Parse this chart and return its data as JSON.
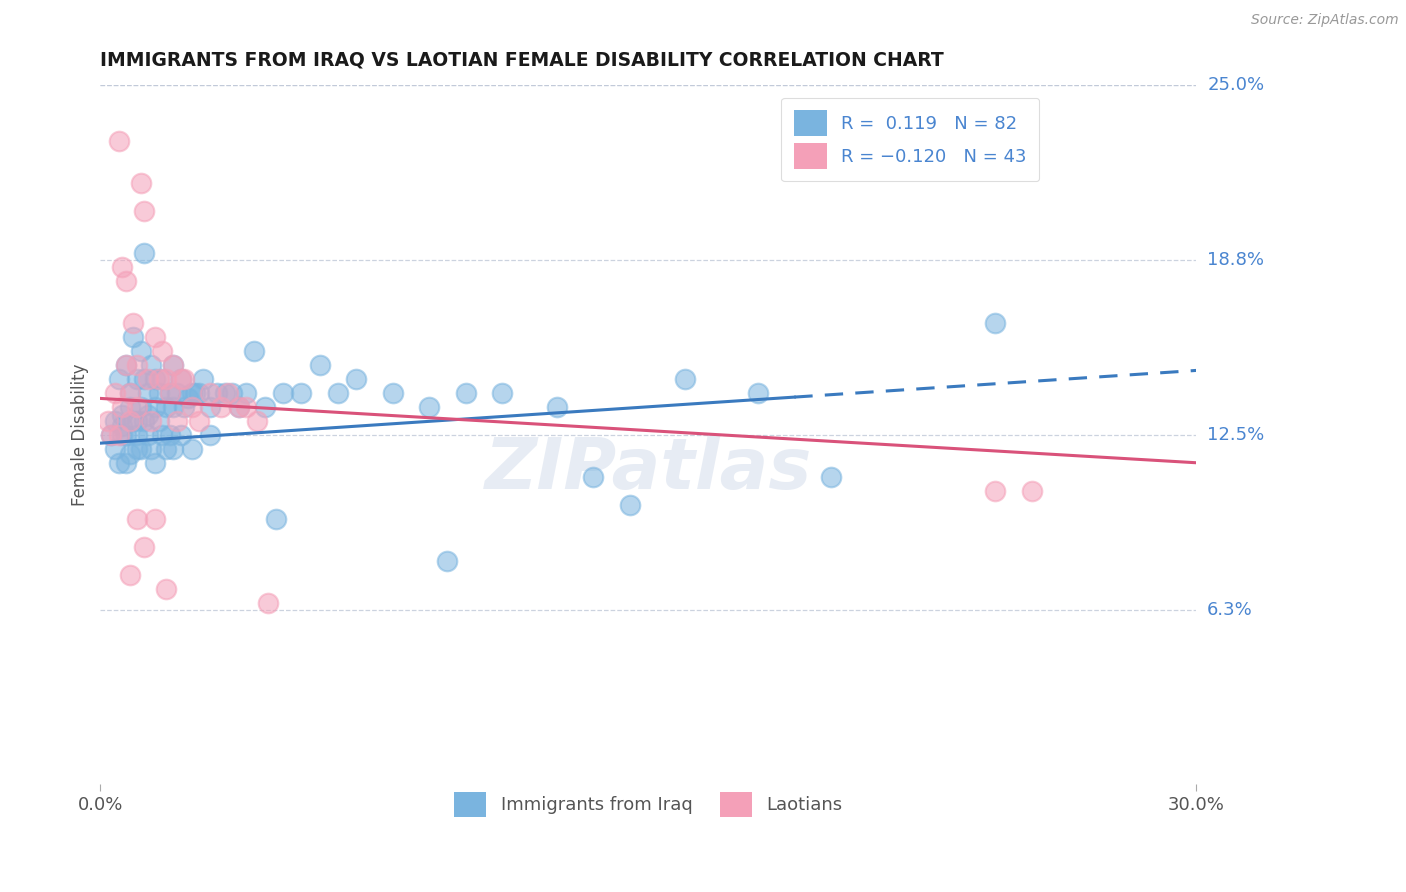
{
  "title": "IMMIGRANTS FROM IRAQ VS LAOTIAN FEMALE DISABILITY CORRELATION CHART",
  "source": "Source: ZipAtlas.com",
  "ylabel": "Female Disability",
  "xlim": [
    0.0,
    30.0
  ],
  "ylim": [
    0.0,
    25.0
  ],
  "xtick_labels": [
    "0.0%",
    "30.0%"
  ],
  "ytick_positions": [
    6.25,
    12.5,
    18.75,
    25.0
  ],
  "ytick_labels": [
    "6.3%",
    "12.5%",
    "18.8%",
    "25.0%"
  ],
  "legend_label1": "Immigrants from Iraq",
  "legend_label2": "Laotians",
  "blue_color": "#7ab4df",
  "pink_color": "#f4a0b8",
  "trend_blue": "#3a7abf",
  "trend_pink": "#d9527a",
  "background_color": "#ffffff",
  "grid_color": "#c0c8d8",
  "title_color": "#1a1a1a",
  "right_label_color": "#4a85d0",
  "blue_scatter_x": [
    0.3,
    0.4,
    0.5,
    0.5,
    0.6,
    0.6,
    0.7,
    0.7,
    0.8,
    0.8,
    0.9,
    0.9,
    1.0,
    1.0,
    1.0,
    1.1,
    1.1,
    1.2,
    1.2,
    1.3,
    1.3,
    1.4,
    1.5,
    1.5,
    1.6,
    1.7,
    1.8,
    1.9,
    2.0,
    2.0,
    2.1,
    2.2,
    2.3,
    2.4,
    2.5,
    2.6,
    2.7,
    2.8,
    3.0,
    3.2,
    3.4,
    3.6,
    3.8,
    4.0,
    4.2,
    4.5,
    5.0,
    5.5,
    6.0,
    6.5,
    7.0,
    8.0,
    9.0,
    10.0,
    11.0,
    12.5,
    13.5,
    14.5,
    16.0,
    18.0,
    4.8,
    9.5,
    20.0,
    24.5,
    0.4,
    0.6,
    0.7,
    0.8,
    1.0,
    1.1,
    1.2,
    1.3,
    1.4,
    1.5,
    1.6,
    1.7,
    1.8,
    1.9,
    2.0,
    2.2,
    2.5,
    3.0
  ],
  "blue_scatter_y": [
    12.5,
    13.0,
    14.5,
    11.5,
    13.2,
    12.8,
    15.0,
    12.5,
    14.0,
    13.5,
    16.0,
    13.0,
    14.5,
    13.0,
    12.0,
    15.5,
    13.5,
    19.0,
    14.5,
    14.0,
    13.2,
    15.0,
    14.5,
    13.5,
    14.0,
    14.5,
    13.5,
    14.0,
    15.0,
    13.5,
    14.0,
    14.5,
    13.5,
    13.8,
    14.0,
    14.0,
    14.0,
    14.5,
    13.5,
    14.0,
    14.0,
    14.0,
    13.5,
    14.0,
    15.5,
    13.5,
    14.0,
    14.0,
    15.0,
    14.0,
    14.5,
    14.0,
    13.5,
    14.0,
    14.0,
    13.5,
    11.0,
    10.0,
    14.5,
    14.0,
    9.5,
    8.0,
    11.0,
    16.5,
    12.0,
    12.5,
    11.5,
    11.8,
    12.5,
    12.0,
    13.0,
    12.5,
    12.0,
    11.5,
    13.0,
    12.5,
    12.0,
    12.5,
    12.0,
    12.5,
    12.0,
    12.5
  ],
  "pink_scatter_x": [
    0.2,
    0.3,
    0.4,
    0.5,
    0.6,
    0.7,
    0.8,
    0.8,
    0.9,
    1.0,
    1.0,
    1.1,
    1.2,
    1.3,
    1.4,
    1.5,
    1.6,
    1.7,
    1.8,
    1.9,
    2.0,
    2.1,
    2.2,
    2.3,
    2.5,
    2.7,
    3.0,
    3.3,
    3.5,
    3.8,
    4.0,
    4.3,
    4.6,
    0.5,
    0.6,
    0.7,
    0.8,
    1.0,
    1.2,
    1.5,
    1.8,
    24.5,
    25.5
  ],
  "pink_scatter_y": [
    13.0,
    12.5,
    14.0,
    12.5,
    13.5,
    15.0,
    14.0,
    13.0,
    16.5,
    15.0,
    13.5,
    21.5,
    20.5,
    14.5,
    13.0,
    16.0,
    14.5,
    15.5,
    14.5,
    14.0,
    15.0,
    13.0,
    14.5,
    14.5,
    13.5,
    13.0,
    14.0,
    13.5,
    14.0,
    13.5,
    13.5,
    13.0,
    6.5,
    23.0,
    18.5,
    18.0,
    7.5,
    9.5,
    8.5,
    9.5,
    7.0,
    10.5,
    10.5
  ],
  "blue_trend_y_start": 12.2,
  "blue_trend_y_end": 14.8,
  "blue_solid_end_x": 19.0,
  "pink_trend_y_start": 13.8,
  "pink_trend_y_end": 11.5
}
